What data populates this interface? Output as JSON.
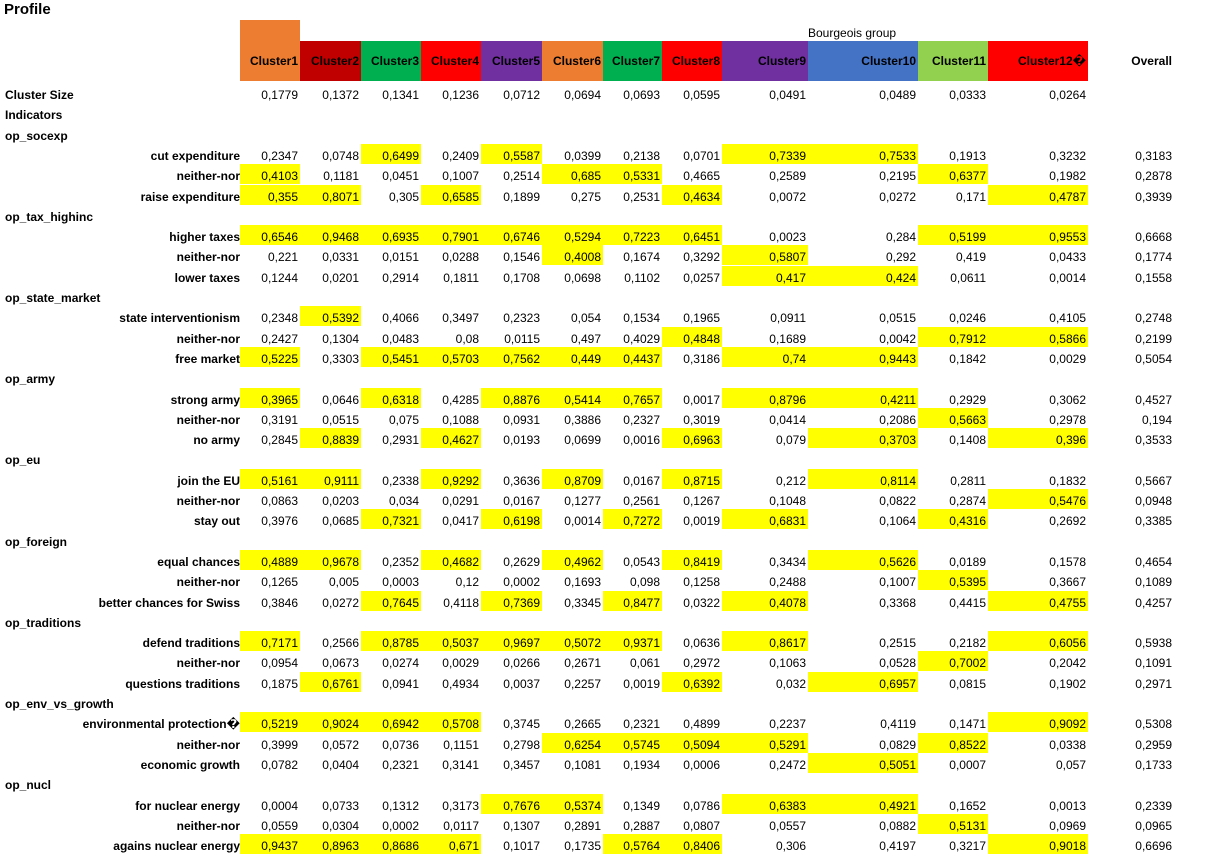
{
  "title": "Profile",
  "group_label": "Bourgeois group",
  "columns": [
    {
      "label": "Cluster1",
      "color": "#ed7d31"
    },
    {
      "label": "Cluster2",
      "color": "#c00000"
    },
    {
      "label": "Cluster3",
      "color": "#00b050"
    },
    {
      "label": "Cluster4",
      "color": "#ff0000"
    },
    {
      "label": "Cluster5",
      "color": "#7030a0"
    },
    {
      "label": "Cluster6",
      "color": "#ed7d31"
    },
    {
      "label": "Cluster7",
      "color": "#00b050"
    },
    {
      "label": "Cluster8",
      "color": "#ff0000"
    },
    {
      "label": "Cluster9",
      "color": "#7030a0"
    },
    {
      "label": "Cluster10",
      "color": "#4472c4"
    },
    {
      "label": "Cluster11",
      "color": "#92d050"
    },
    {
      "label": "Cluster12�",
      "color": "#ff0000"
    },
    {
      "label": "Overall",
      "color": ""
    }
  ],
  "highlight_color": "#ffff00",
  "rows": [
    {
      "type": "stat",
      "label": "Cluster Size",
      "values": [
        "0,1779",
        "0,1372",
        "0,1341",
        "0,1236",
        "0,0712",
        "0,0694",
        "0,0693",
        "0,0595",
        "0,0491",
        "0,0489",
        "0,0333",
        "0,0264",
        ""
      ],
      "hl": []
    },
    {
      "type": "section",
      "label": "Indicators"
    },
    {
      "type": "section",
      "label": "op_socexp"
    },
    {
      "type": "data",
      "label": "cut expenditure",
      "values": [
        "0,2347",
        "0,0748",
        "0,6499",
        "0,2409",
        "0,5587",
        "0,0399",
        "0,2138",
        "0,0701",
        "0,7339",
        "0,7533",
        "0,1913",
        "0,3232",
        "0,3183"
      ],
      "hl": [
        2,
        4,
        8,
        9
      ]
    },
    {
      "type": "data",
      "label": "neither-nor",
      "values": [
        "0,4103",
        "0,1181",
        "0,0451",
        "0,1007",
        "0,2514",
        "0,685",
        "0,5331",
        "0,4665",
        "0,2589",
        "0,2195",
        "0,6377",
        "0,1982",
        "0,2878"
      ],
      "hl": [
        0,
        5,
        6,
        10
      ]
    },
    {
      "type": "data",
      "label": "raise expenditure",
      "values": [
        "0,355",
        "0,8071",
        "0,305",
        "0,6585",
        "0,1899",
        "0,275",
        "0,2531",
        "0,4634",
        "0,0072",
        "0,0272",
        "0,171",
        "0,4787",
        "0,3939"
      ],
      "hl": [
        0,
        1,
        3,
        7,
        11
      ]
    },
    {
      "type": "section",
      "label": "op_tax_highinc"
    },
    {
      "type": "data",
      "label": "higher taxes",
      "values": [
        "0,6546",
        "0,9468",
        "0,6935",
        "0,7901",
        "0,6746",
        "0,5294",
        "0,7223",
        "0,6451",
        "0,0023",
        "0,284",
        "0,5199",
        "0,9553",
        "0,6668"
      ],
      "hl": [
        0,
        1,
        2,
        3,
        4,
        5,
        6,
        7,
        10,
        11
      ]
    },
    {
      "type": "data",
      "label": "neither-nor",
      "values": [
        "0,221",
        "0,0331",
        "0,0151",
        "0,0288",
        "0,1546",
        "0,4008",
        "0,1674",
        "0,3292",
        "0,5807",
        "0,292",
        "0,419",
        "0,0433",
        "0,1774"
      ],
      "hl": [
        5,
        8
      ]
    },
    {
      "type": "data",
      "label": "lower taxes",
      "values": [
        "0,1244",
        "0,0201",
        "0,2914",
        "0,1811",
        "0,1708",
        "0,0698",
        "0,1102",
        "0,0257",
        "0,417",
        "0,424",
        "0,0611",
        "0,0014",
        "0,1558"
      ],
      "hl": [
        8,
        9
      ]
    },
    {
      "type": "section",
      "label": "op_state_market"
    },
    {
      "type": "data",
      "label": "state interventionism",
      "values": [
        "0,2348",
        "0,5392",
        "0,4066",
        "0,3497",
        "0,2323",
        "0,054",
        "0,1534",
        "0,1965",
        "0,0911",
        "0,0515",
        "0,0246",
        "0,4105",
        "0,2748"
      ],
      "hl": [
        1
      ]
    },
    {
      "type": "data",
      "label": "neither-nor",
      "values": [
        "0,2427",
        "0,1304",
        "0,0483",
        "0,08",
        "0,0115",
        "0,497",
        "0,4029",
        "0,4848",
        "0,1689",
        "0,0042",
        "0,7912",
        "0,5866",
        "0,2199"
      ],
      "hl": [
        7,
        10,
        11
      ]
    },
    {
      "type": "data",
      "label": "free market",
      "values": [
        "0,5225",
        "0,3303",
        "0,5451",
        "0,5703",
        "0,7562",
        "0,449",
        "0,4437",
        "0,3186",
        "0,74",
        "0,9443",
        "0,1842",
        "0,0029",
        "0,5054"
      ],
      "hl": [
        0,
        2,
        3,
        4,
        5,
        6,
        8,
        9
      ]
    },
    {
      "type": "section",
      "label": "op_army"
    },
    {
      "type": "data",
      "label": "strong army",
      "values": [
        "0,3965",
        "0,0646",
        "0,6318",
        "0,4285",
        "0,8876",
        "0,5414",
        "0,7657",
        "0,0017",
        "0,8796",
        "0,4211",
        "0,2929",
        "0,3062",
        "0,4527"
      ],
      "hl": [
        0,
        2,
        4,
        5,
        6,
        8,
        9
      ]
    },
    {
      "type": "data",
      "label": "neither-nor",
      "values": [
        "0,3191",
        "0,0515",
        "0,075",
        "0,1088",
        "0,0931",
        "0,3886",
        "0,2327",
        "0,3019",
        "0,0414",
        "0,2086",
        "0,5663",
        "0,2978",
        "0,194"
      ],
      "hl": [
        10
      ]
    },
    {
      "type": "data",
      "label": "no army",
      "values": [
        "0,2845",
        "0,8839",
        "0,2931",
        "0,4627",
        "0,0193",
        "0,0699",
        "0,0016",
        "0,6963",
        "0,079",
        "0,3703",
        "0,1408",
        "0,396",
        "0,3533"
      ],
      "hl": [
        1,
        3,
        7,
        9,
        11
      ]
    },
    {
      "type": "section",
      "label": "op_eu"
    },
    {
      "type": "data",
      "label": "join the EU",
      "values": [
        "0,5161",
        "0,9111",
        "0,2338",
        "0,9292",
        "0,3636",
        "0,8709",
        "0,0167",
        "0,8715",
        "0,212",
        "0,8114",
        "0,2811",
        "0,1832",
        "0,5667"
      ],
      "hl": [
        0,
        1,
        3,
        5,
        7,
        9
      ]
    },
    {
      "type": "data",
      "label": "neither-nor",
      "values": [
        "0,0863",
        "0,0203",
        "0,034",
        "0,0291",
        "0,0167",
        "0,1277",
        "0,2561",
        "0,1267",
        "0,1048",
        "0,0822",
        "0,2874",
        "0,5476",
        "0,0948"
      ],
      "hl": [
        11
      ]
    },
    {
      "type": "data",
      "label": "stay out",
      "values": [
        "0,3976",
        "0,0685",
        "0,7321",
        "0,0417",
        "0,6198",
        "0,0014",
        "0,7272",
        "0,0019",
        "0,6831",
        "0,1064",
        "0,4316",
        "0,2692",
        "0,3385"
      ],
      "hl": [
        2,
        4,
        6,
        8,
        10
      ]
    },
    {
      "type": "section",
      "label": "op_foreign"
    },
    {
      "type": "data",
      "label": "equal chances",
      "values": [
        "0,4889",
        "0,9678",
        "0,2352",
        "0,4682",
        "0,2629",
        "0,4962",
        "0,0543",
        "0,8419",
        "0,3434",
        "0,5626",
        "0,0189",
        "0,1578",
        "0,4654"
      ],
      "hl": [
        0,
        1,
        3,
        5,
        7,
        9
      ]
    },
    {
      "type": "data",
      "label": "neither-nor",
      "values": [
        "0,1265",
        "0,005",
        "0,0003",
        "0,12",
        "0,0002",
        "0,1693",
        "0,098",
        "0,1258",
        "0,2488",
        "0,1007",
        "0,5395",
        "0,3667",
        "0,1089"
      ],
      "hl": [
        10
      ]
    },
    {
      "type": "data",
      "label": "better chances for Swiss",
      "values": [
        "0,3846",
        "0,0272",
        "0,7645",
        "0,4118",
        "0,7369",
        "0,3345",
        "0,8477",
        "0,0322",
        "0,4078",
        "0,3368",
        "0,4415",
        "0,4755",
        "0,4257"
      ],
      "hl": [
        2,
        4,
        6,
        8,
        11
      ]
    },
    {
      "type": "section",
      "label": "op_traditions"
    },
    {
      "type": "data",
      "label": "defend traditions",
      "values": [
        "0,7171",
        "0,2566",
        "0,8785",
        "0,5037",
        "0,9697",
        "0,5072",
        "0,9371",
        "0,0636",
        "0,8617",
        "0,2515",
        "0,2182",
        "0,6056",
        "0,5938"
      ],
      "hl": [
        0,
        2,
        3,
        4,
        5,
        6,
        8,
        11
      ]
    },
    {
      "type": "data",
      "label": "neither-nor",
      "values": [
        "0,0954",
        "0,0673",
        "0,0274",
        "0,0029",
        "0,0266",
        "0,2671",
        "0,061",
        "0,2972",
        "0,1063",
        "0,0528",
        "0,7002",
        "0,2042",
        "0,1091"
      ],
      "hl": [
        10
      ]
    },
    {
      "type": "data",
      "label": "questions traditions",
      "values": [
        "0,1875",
        "0,6761",
        "0,0941",
        "0,4934",
        "0,0037",
        "0,2257",
        "0,0019",
        "0,6392",
        "0,032",
        "0,6957",
        "0,0815",
        "0,1902",
        "0,2971"
      ],
      "hl": [
        1,
        7,
        9
      ]
    },
    {
      "type": "section",
      "label": "op_env_vs_growth"
    },
    {
      "type": "data",
      "label": "environmental protection�",
      "values": [
        "0,5219",
        "0,9024",
        "0,6942",
        "0,5708",
        "0,3745",
        "0,2665",
        "0,2321",
        "0,4899",
        "0,2237",
        "0,4119",
        "0,1471",
        "0,9092",
        "0,5308"
      ],
      "hl": [
        0,
        1,
        2,
        3,
        11
      ]
    },
    {
      "type": "data",
      "label": "neither-nor",
      "values": [
        "0,3999",
        "0,0572",
        "0,0736",
        "0,1151",
        "0,2798",
        "0,6254",
        "0,5745",
        "0,5094",
        "0,5291",
        "0,0829",
        "0,8522",
        "0,0338",
        "0,2959"
      ],
      "hl": [
        5,
        6,
        7,
        8,
        10
      ]
    },
    {
      "type": "data",
      "label": "economic growth",
      "values": [
        "0,0782",
        "0,0404",
        "0,2321",
        "0,3141",
        "0,3457",
        "0,1081",
        "0,1934",
        "0,0006",
        "0,2472",
        "0,5051",
        "0,0007",
        "0,057",
        "0,1733"
      ],
      "hl": [
        9
      ]
    },
    {
      "type": "section",
      "label": "op_nucl"
    },
    {
      "type": "data",
      "label": "for nuclear energy",
      "values": [
        "0,0004",
        "0,0733",
        "0,1312",
        "0,3173",
        "0,7676",
        "0,5374",
        "0,1349",
        "0,0786",
        "0,6383",
        "0,4921",
        "0,1652",
        "0,0013",
        "0,2339"
      ],
      "hl": [
        4,
        5,
        8,
        9
      ]
    },
    {
      "type": "data",
      "label": "neither-nor",
      "values": [
        "0,0559",
        "0,0304",
        "0,0002",
        "0,0117",
        "0,1307",
        "0,2891",
        "0,2887",
        "0,0807",
        "0,0557",
        "0,0882",
        "0,5131",
        "0,0969",
        "0,0965"
      ],
      "hl": [
        10
      ]
    },
    {
      "type": "data",
      "label": "agains nuclear energy",
      "values": [
        "0,9437",
        "0,8963",
        "0,8686",
        "0,671",
        "0,1017",
        "0,1735",
        "0,5764",
        "0,8406",
        "0,306",
        "0,4197",
        "0,3217",
        "0,9018",
        "0,6696"
      ],
      "hl": [
        0,
        1,
        2,
        3,
        6,
        7,
        11
      ]
    }
  ]
}
